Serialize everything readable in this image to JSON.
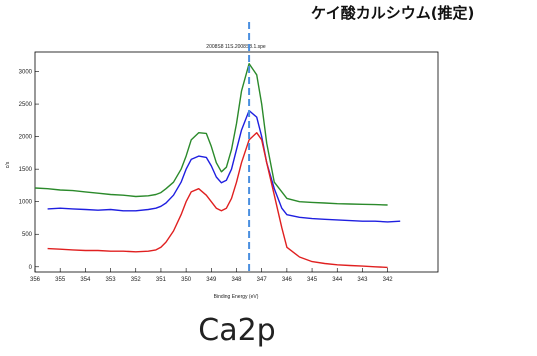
{
  "chart_data": {
    "type": "line",
    "title": "2008S8 11S.2008S8.1.spe",
    "xlabel": "Binding Energy (eV)",
    "ylabel": "c/s",
    "xlim": [
      356,
      340
    ],
    "ylim": [
      -80,
      3300
    ],
    "xticks": [
      356,
      355,
      354,
      353,
      352,
      351,
      350,
      349,
      348,
      347,
      346,
      345,
      344,
      343,
      342
    ],
    "xtick_labels": [
      "356",
      "355",
      "354",
      "353",
      "352",
      "351",
      "350",
      "349",
      "348",
      "347",
      "346",
      "345",
      "344",
      "343",
      "342"
    ],
    "yticks": [
      0,
      500,
      1000,
      1500,
      2000,
      2500,
      3000
    ],
    "ytick_labels": [
      "0",
      "500",
      "1000",
      "1500",
      "2000",
      "2500",
      "3000"
    ],
    "grid": false,
    "colors": [
      "#2b8a2b",
      "#1f1fe0",
      "#e02020"
    ],
    "series": [
      {
        "color": "#2b8a2b",
        "x": [
          356,
          355.5,
          355,
          354.5,
          354,
          353.5,
          353,
          352.5,
          352,
          351.5,
          351.2,
          351,
          350.8,
          350.5,
          350.2,
          350,
          349.8,
          349.5,
          349.2,
          349,
          348.8,
          348.6,
          348.4,
          348.2,
          348,
          347.8,
          347.5,
          347.2,
          347,
          346.8,
          346.5,
          346,
          345.5,
          345,
          344.5,
          344,
          343.5,
          343,
          342.5,
          342
        ],
        "y": [
          1210,
          1200,
          1180,
          1170,
          1150,
          1130,
          1110,
          1100,
          1080,
          1090,
          1110,
          1140,
          1200,
          1300,
          1500,
          1700,
          1950,
          2060,
          2050,
          1850,
          1600,
          1460,
          1530,
          1800,
          2200,
          2700,
          3120,
          2950,
          2500,
          1900,
          1300,
          1050,
          1000,
          990,
          980,
          970,
          965,
          960,
          955,
          950
        ]
      },
      {
        "color": "#1f1fe0",
        "x": [
          355.5,
          355,
          354.5,
          354,
          353.5,
          353,
          352.5,
          352,
          351.5,
          351.2,
          351,
          350.8,
          350.5,
          350.2,
          350,
          349.8,
          349.5,
          349.2,
          349,
          348.8,
          348.6,
          348.4,
          348.2,
          348,
          347.8,
          347.5,
          347.2,
          347,
          346.8,
          346.5,
          346.2,
          346,
          345.5,
          345,
          344.5,
          344,
          343.5,
          343,
          342.5,
          342,
          341.5
        ],
        "y": [
          890,
          900,
          890,
          880,
          870,
          880,
          860,
          860,
          880,
          900,
          930,
          980,
          1100,
          1300,
          1500,
          1650,
          1700,
          1680,
          1550,
          1380,
          1290,
          1330,
          1500,
          1800,
          2100,
          2400,
          2300,
          2000,
          1600,
          1200,
          900,
          800,
          760,
          740,
          730,
          720,
          710,
          700,
          700,
          690,
          700
        ]
      },
      {
        "color": "#e02020",
        "x": [
          355.5,
          355,
          354.5,
          354,
          353.5,
          353,
          352.5,
          352,
          351.5,
          351.2,
          351,
          350.8,
          350.5,
          350.2,
          350,
          349.8,
          349.5,
          349.2,
          349,
          348.8,
          348.6,
          348.4,
          348.2,
          348,
          347.8,
          347.5,
          347.2,
          347,
          346.8,
          346.5,
          346.2,
          346,
          345.5,
          345,
          344.5,
          344,
          343.5,
          343,
          342.5,
          342
        ],
        "y": [
          280,
          270,
          260,
          250,
          250,
          240,
          240,
          230,
          240,
          260,
          300,
          380,
          550,
          800,
          1000,
          1150,
          1200,
          1100,
          1000,
          900,
          860,
          900,
          1050,
          1300,
          1600,
          1950,
          2060,
          1950,
          1600,
          1100,
          600,
          300,
          150,
          80,
          50,
          30,
          20,
          10,
          0,
          -10
        ]
      }
    ],
    "annotations": [
      {
        "text": "ケイ酸カルシウム(推定)",
        "x": 347.5,
        "style": "vertical dashed line",
        "color": "#4a8fe0"
      }
    ],
    "caption": "Ca2p"
  }
}
